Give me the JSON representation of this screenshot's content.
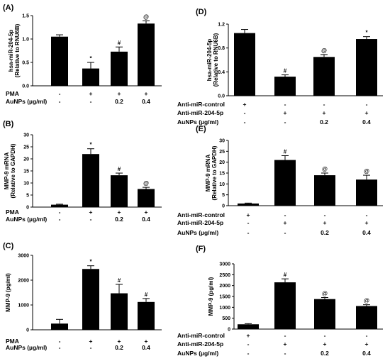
{
  "chart_data": [
    {
      "panel": "(A)",
      "type": "bar",
      "ylabel": "hsa-miR-204-5p\n(Relative to RNU6B)",
      "ylim": [
        0,
        1.5
      ],
      "yticks": [
        "0.0",
        "0.5",
        "1.0",
        "1.5"
      ],
      "values": [
        1.05,
        0.37,
        0.73,
        1.33
      ],
      "errors": [
        0.04,
        0.13,
        0.1,
        0.06
      ],
      "annotations": [
        "",
        "*",
        "#",
        "@"
      ],
      "conditions": [
        {
          "label": "PMA",
          "values": [
            "-",
            "+",
            "+",
            "+"
          ]
        },
        {
          "label": "AuNPs (µg/ml)",
          "values": [
            "-",
            "-",
            "0.2",
            "0.4"
          ]
        }
      ]
    },
    {
      "panel": "(B)",
      "type": "bar",
      "ylabel": "MMP-9 mRNA\n(Relative to GAPDH)",
      "ylim": [
        0,
        30
      ],
      "yticks": [
        "0",
        "5",
        "10",
        "15",
        "20",
        "25",
        "30"
      ],
      "values": [
        1.0,
        22.0,
        13.2,
        7.5
      ],
      "errors": [
        0.2,
        2.2,
        0.9,
        0.7
      ],
      "annotations": [
        "",
        "*",
        "#",
        "@"
      ],
      "conditions": [
        {
          "label": "PMA",
          "values": [
            "-",
            "+",
            "+",
            "+"
          ]
        },
        {
          "label": "AuNPs (µg/ml)",
          "values": [
            "-",
            "-",
            "0.2",
            "0.4"
          ]
        }
      ]
    },
    {
      "panel": "(C)",
      "type": "bar",
      "ylabel": "MMP-9 (pg/ml)",
      "ylim": [
        0,
        3000
      ],
      "yticks": [
        "0",
        "1000",
        "2000",
        "3000"
      ],
      "values": [
        250,
        2450,
        1470,
        1120
      ],
      "errors": [
        170,
        130,
        360,
        140
      ],
      "annotations": [
        "",
        "*",
        "#",
        "#"
      ],
      "conditions": [
        {
          "label": "PMA",
          "values": [
            "-",
            "+",
            "+",
            "+"
          ]
        },
        {
          "label": "AuNPs (µg/ml)",
          "values": [
            "-",
            "-",
            "0.2",
            "0.4"
          ]
        }
      ]
    },
    {
      "panel": "(D)",
      "type": "bar",
      "ylabel": "hsa-miR-204-5p\n(Relative to RNU6B)",
      "ylim": [
        0,
        1.2
      ],
      "yticks": [
        "0.0",
        "0.4",
        "0.8",
        "1.2"
      ],
      "values": [
        1.05,
        0.32,
        0.65,
        0.95
      ],
      "errors": [
        0.06,
        0.03,
        0.04,
        0.04
      ],
      "annotations": [
        "",
        "#",
        "@",
        "*"
      ],
      "conditions": [
        {
          "label": "Anti-miR-control",
          "values": [
            "+",
            "-",
            "-",
            "-"
          ]
        },
        {
          "label": "Anti-miR-204-5p",
          "values": [
            "-",
            "+",
            "+",
            "+"
          ]
        },
        {
          "label": "AuNPs (µg/ml)",
          "values": [
            "-",
            "-",
            "0.2",
            "0.4"
          ]
        }
      ]
    },
    {
      "panel": "(E)",
      "type": "bar",
      "ylabel": "MMP-9 mRNA\n(Relative to GAPDH)",
      "ylim": [
        0,
        30
      ],
      "yticks": [
        "0",
        "5",
        "10",
        "15",
        "20",
        "25",
        "30"
      ],
      "values": [
        1.0,
        21.0,
        14.0,
        12.0
      ],
      "errors": [
        0.2,
        2.0,
        1.0,
        2.0
      ],
      "annotations": [
        "",
        "#",
        "@",
        "@"
      ],
      "conditions": [
        {
          "label": "Anti-miR-control",
          "values": [
            "+",
            "-",
            "-",
            "-"
          ]
        },
        {
          "label": "Anti-miR-204-5p",
          "values": [
            "-",
            "+",
            "+",
            "+"
          ]
        },
        {
          "label": "AuNPs (µg/ml)",
          "values": [
            "-",
            "-",
            "0.2",
            "0.4"
          ]
        }
      ]
    },
    {
      "panel": "(F)",
      "type": "bar",
      "ylabel": "MMP-9 (pg/ml)",
      "ylim": [
        0,
        3000
      ],
      "yticks": [
        "0",
        "500",
        "1000",
        "1500",
        "2000",
        "2500",
        "3000"
      ],
      "values": [
        220,
        2150,
        1380,
        1060
      ],
      "errors": [
        30,
        160,
        70,
        60
      ],
      "annotations": [
        "",
        "#",
        "@",
        "@"
      ],
      "conditions": [
        {
          "label": "Anti-miR-control",
          "values": [
            "+",
            "-",
            "-",
            "-"
          ]
        },
        {
          "label": "Anti-miR-204-5p",
          "values": [
            "-",
            "+",
            "+",
            "+"
          ]
        },
        {
          "label": "AuNPs (µg/ml)",
          "values": [
            "-",
            "-",
            "0.2",
            "0.4"
          ]
        }
      ]
    }
  ]
}
